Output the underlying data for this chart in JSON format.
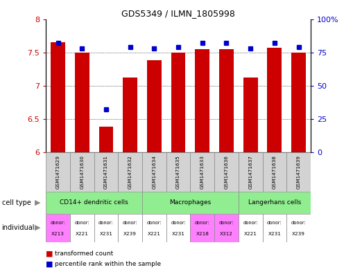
{
  "title": "GDS5349 / ILMN_1805998",
  "samples": [
    "GSM1471629",
    "GSM1471630",
    "GSM1471631",
    "GSM1471632",
    "GSM1471634",
    "GSM1471635",
    "GSM1471633",
    "GSM1471636",
    "GSM1471637",
    "GSM1471638",
    "GSM1471639"
  ],
  "red_values": [
    7.65,
    7.5,
    6.38,
    7.12,
    7.38,
    7.5,
    7.55,
    7.55,
    7.12,
    7.57,
    7.5
  ],
  "blue_values": [
    0.82,
    0.78,
    0.32,
    0.79,
    0.78,
    0.79,
    0.82,
    0.82,
    0.78,
    0.82,
    0.79
  ],
  "ylim_left": [
    6.0,
    8.0
  ],
  "ylim_right": [
    0.0,
    1.0
  ],
  "yticks_left": [
    6.0,
    6.5,
    7.0,
    7.5,
    8.0
  ],
  "ytick_labels_left": [
    "6",
    "6.5",
    "7",
    "7.5",
    "8"
  ],
  "yticks_right": [
    0.0,
    0.25,
    0.5,
    0.75,
    1.0
  ],
  "ytick_labels_right": [
    "0",
    "25",
    "50",
    "75",
    "100%"
  ],
  "cell_groups": [
    {
      "label": "CD14+ dendritic cells",
      "start": 0,
      "end": 4,
      "color": "#90EE90"
    },
    {
      "label": "Macrophages",
      "start": 4,
      "end": 8,
      "color": "#90EE90"
    },
    {
      "label": "Langerhans cells",
      "start": 8,
      "end": 11,
      "color": "#90EE90"
    }
  ],
  "individuals": [
    "X213",
    "X221",
    "X231",
    "X239",
    "X221",
    "X231",
    "X218",
    "X312",
    "X221",
    "X231",
    "X239"
  ],
  "ind_colors": [
    "#FF80FF",
    "#ffffff",
    "#ffffff",
    "#ffffff",
    "#ffffff",
    "#ffffff",
    "#FF80FF",
    "#FF80FF",
    "#ffffff",
    "#ffffff",
    "#ffffff"
  ],
  "bar_color": "#CC0000",
  "dot_color": "#0000CC",
  "baseline": 6.0,
  "left_tick_color": "#CC0000",
  "right_tick_color": "#0000CC",
  "sample_box_color": "#D3D3D3",
  "cell_type_label": "cell type",
  "individual_label": "individual",
  "legend_red_label": "transformed count",
  "legend_blue_label": "percentile rank within the sample"
}
